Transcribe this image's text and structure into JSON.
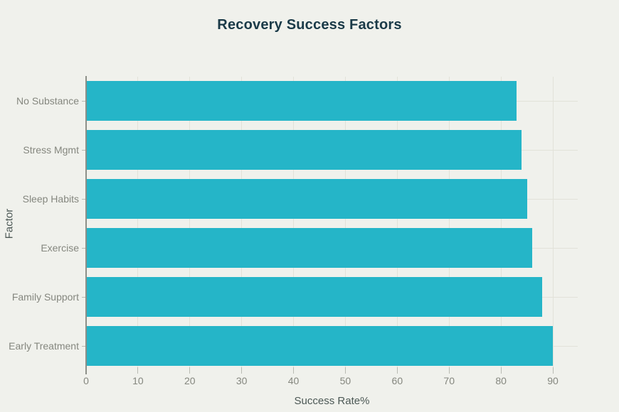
{
  "chart_data": {
    "type": "bar",
    "orientation": "horizontal",
    "title": "Recovery Success Factors",
    "xlabel": "Success Rate%",
    "ylabel": "Factor",
    "categories": [
      "No Substance",
      "Stress Mgmt",
      "Sleep Habits",
      "Exercise",
      "Family Support",
      "Early Treatment"
    ],
    "values": [
      83,
      84,
      85,
      86,
      88,
      90
    ],
    "xticks": [
      0,
      10,
      20,
      30,
      40,
      50,
      60,
      70,
      80,
      90
    ],
    "xlim": [
      0,
      94.8
    ],
    "grid": true,
    "legend": false,
    "bar_color": "#25b5c8"
  },
  "colors": {
    "background": "#f0f1ec",
    "bar": "#25b5c8",
    "title": "#1a3a48",
    "axis_title": "#4c5855",
    "tick_label": "#85877f",
    "gridline": "#e2e2d9",
    "spine": "#8d9089",
    "tick_mark": "#b9bbb3"
  }
}
